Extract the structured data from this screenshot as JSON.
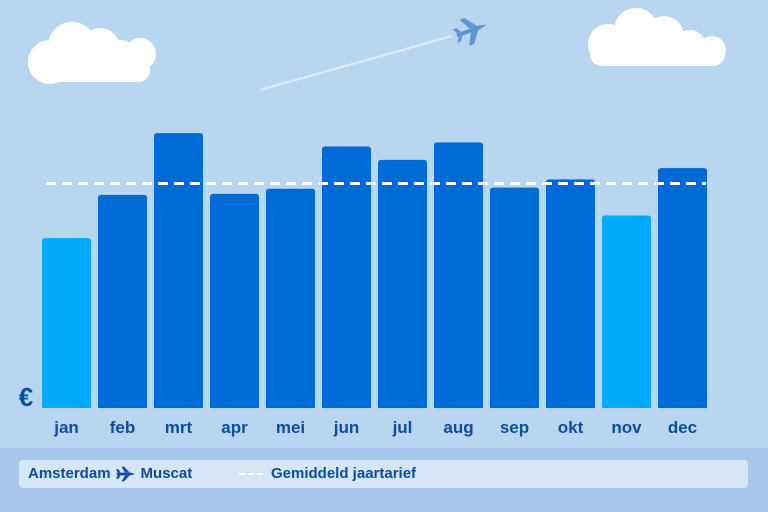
{
  "chart_data": {
    "type": "bar",
    "title": "",
    "xlabel": "",
    "ylabel": "€",
    "ylim": [
      0,
      270
    ],
    "categories": [
      "jan",
      "feb",
      "mrt",
      "apr",
      "mei",
      "jun",
      "jul",
      "aug",
      "sep",
      "okt",
      "nov",
      "dec"
    ],
    "values": [
      165,
      207,
      267,
      208,
      213,
      254,
      241,
      258,
      214,
      222,
      187,
      233
    ],
    "highlight": [
      true,
      false,
      false,
      false,
      false,
      false,
      false,
      false,
      false,
      false,
      true,
      false
    ],
    "average": 218,
    "colors": {
      "bar": "#006ad6",
      "bar_highlight": "#00aaf7",
      "average_line": "#ffffff",
      "tick_label": "#0a4ea3"
    }
  },
  "legend": {
    "origin": "Amsterdam",
    "destination": "Muscat",
    "route_icon": "plane-icon",
    "average_label": "Gemiddeld jaartarief"
  }
}
